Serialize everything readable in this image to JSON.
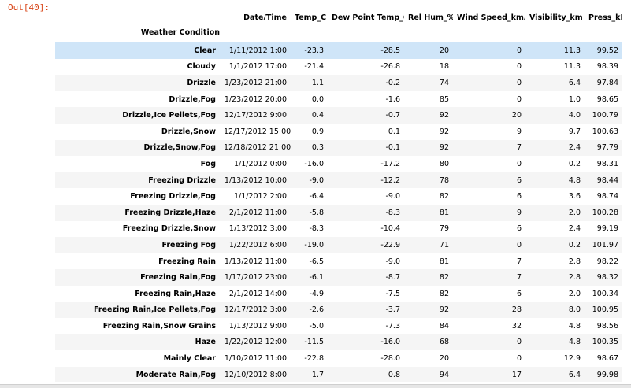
{
  "prompt": "Out[40]:",
  "table": {
    "index_name": "Weather Condition",
    "columns": [
      "Date/Time",
      "Temp_C",
      "Dew Point Temp_C",
      "Rel Hum_%",
      "Wind Speed_km/h",
      "Visibility_km",
      "Press_kPa"
    ],
    "rows": [
      {
        "index": "Clear",
        "cells": [
          "1/11/2012 1:00",
          "-23.3",
          "-28.5",
          "20",
          "0",
          "11.3",
          "99.52"
        ]
      },
      {
        "index": "Cloudy",
        "cells": [
          "1/1/2012 17:00",
          "-21.4",
          "-26.8",
          "18",
          "0",
          "11.3",
          "98.39"
        ]
      },
      {
        "index": "Drizzle",
        "cells": [
          "1/23/2012 21:00",
          "1.1",
          "-0.2",
          "74",
          "0",
          "6.4",
          "97.84"
        ]
      },
      {
        "index": "Drizzle,Fog",
        "cells": [
          "1/23/2012 20:00",
          "0.0",
          "-1.6",
          "85",
          "0",
          "1.0",
          "98.65"
        ]
      },
      {
        "index": "Drizzle,Ice Pellets,Fog",
        "cells": [
          "12/17/2012 9:00",
          "0.4",
          "-0.7",
          "92",
          "20",
          "4.0",
          "100.79"
        ]
      },
      {
        "index": "Drizzle,Snow",
        "cells": [
          "12/17/2012 15:00",
          "0.9",
          "0.1",
          "92",
          "9",
          "9.7",
          "100.63"
        ]
      },
      {
        "index": "Drizzle,Snow,Fog",
        "cells": [
          "12/18/2012 21:00",
          "0.3",
          "-0.1",
          "92",
          "7",
          "2.4",
          "97.79"
        ]
      },
      {
        "index": "Fog",
        "cells": [
          "1/1/2012 0:00",
          "-16.0",
          "-17.2",
          "80",
          "0",
          "0.2",
          "98.31"
        ]
      },
      {
        "index": "Freezing Drizzle",
        "cells": [
          "1/13/2012 10:00",
          "-9.0",
          "-12.2",
          "78",
          "6",
          "4.8",
          "98.44"
        ]
      },
      {
        "index": "Freezing Drizzle,Fog",
        "cells": [
          "1/1/2012 2:00",
          "-6.4",
          "-9.0",
          "82",
          "6",
          "3.6",
          "98.74"
        ]
      },
      {
        "index": "Freezing Drizzle,Haze",
        "cells": [
          "2/1/2012 11:00",
          "-5.8",
          "-8.3",
          "81",
          "9",
          "2.0",
          "100.28"
        ]
      },
      {
        "index": "Freezing Drizzle,Snow",
        "cells": [
          "1/13/2012 3:00",
          "-8.3",
          "-10.4",
          "79",
          "6",
          "2.4",
          "99.19"
        ]
      },
      {
        "index": "Freezing Fog",
        "cells": [
          "1/22/2012 6:00",
          "-19.0",
          "-22.9",
          "71",
          "0",
          "0.2",
          "101.97"
        ]
      },
      {
        "index": "Freezing Rain",
        "cells": [
          "1/13/2012 11:00",
          "-6.5",
          "-9.0",
          "81",
          "7",
          "2.8",
          "98.22"
        ]
      },
      {
        "index": "Freezing Rain,Fog",
        "cells": [
          "1/17/2012 23:00",
          "-6.1",
          "-8.7",
          "82",
          "7",
          "2.8",
          "98.32"
        ]
      },
      {
        "index": "Freezing Rain,Haze",
        "cells": [
          "2/1/2012 14:00",
          "-4.9",
          "-7.5",
          "82",
          "6",
          "2.0",
          "100.34"
        ]
      },
      {
        "index": "Freezing Rain,Ice Pellets,Fog",
        "cells": [
          "12/17/2012 3:00",
          "-2.6",
          "-3.7",
          "92",
          "28",
          "8.0",
          "100.95"
        ]
      },
      {
        "index": "Freezing Rain,Snow Grains",
        "cells": [
          "1/13/2012 9:00",
          "-5.0",
          "-7.3",
          "84",
          "32",
          "4.8",
          "98.56"
        ]
      },
      {
        "index": "Haze",
        "cells": [
          "1/22/2012 12:00",
          "-11.5",
          "-16.0",
          "68",
          "0",
          "4.8",
          "100.35"
        ]
      },
      {
        "index": "Mainly Clear",
        "cells": [
          "1/10/2012 11:00",
          "-22.8",
          "-28.0",
          "20",
          "0",
          "12.9",
          "98.67"
        ]
      },
      {
        "index": "Moderate Rain,Fog",
        "cells": [
          "12/10/2012 8:00",
          "1.7",
          "0.8",
          "94",
          "17",
          "6.4",
          "99.98"
        ]
      }
    ]
  },
  "colors": {
    "prompt": "#d84315",
    "stripe": "#f5f5f5",
    "selected_row": "#cfe5f8"
  }
}
